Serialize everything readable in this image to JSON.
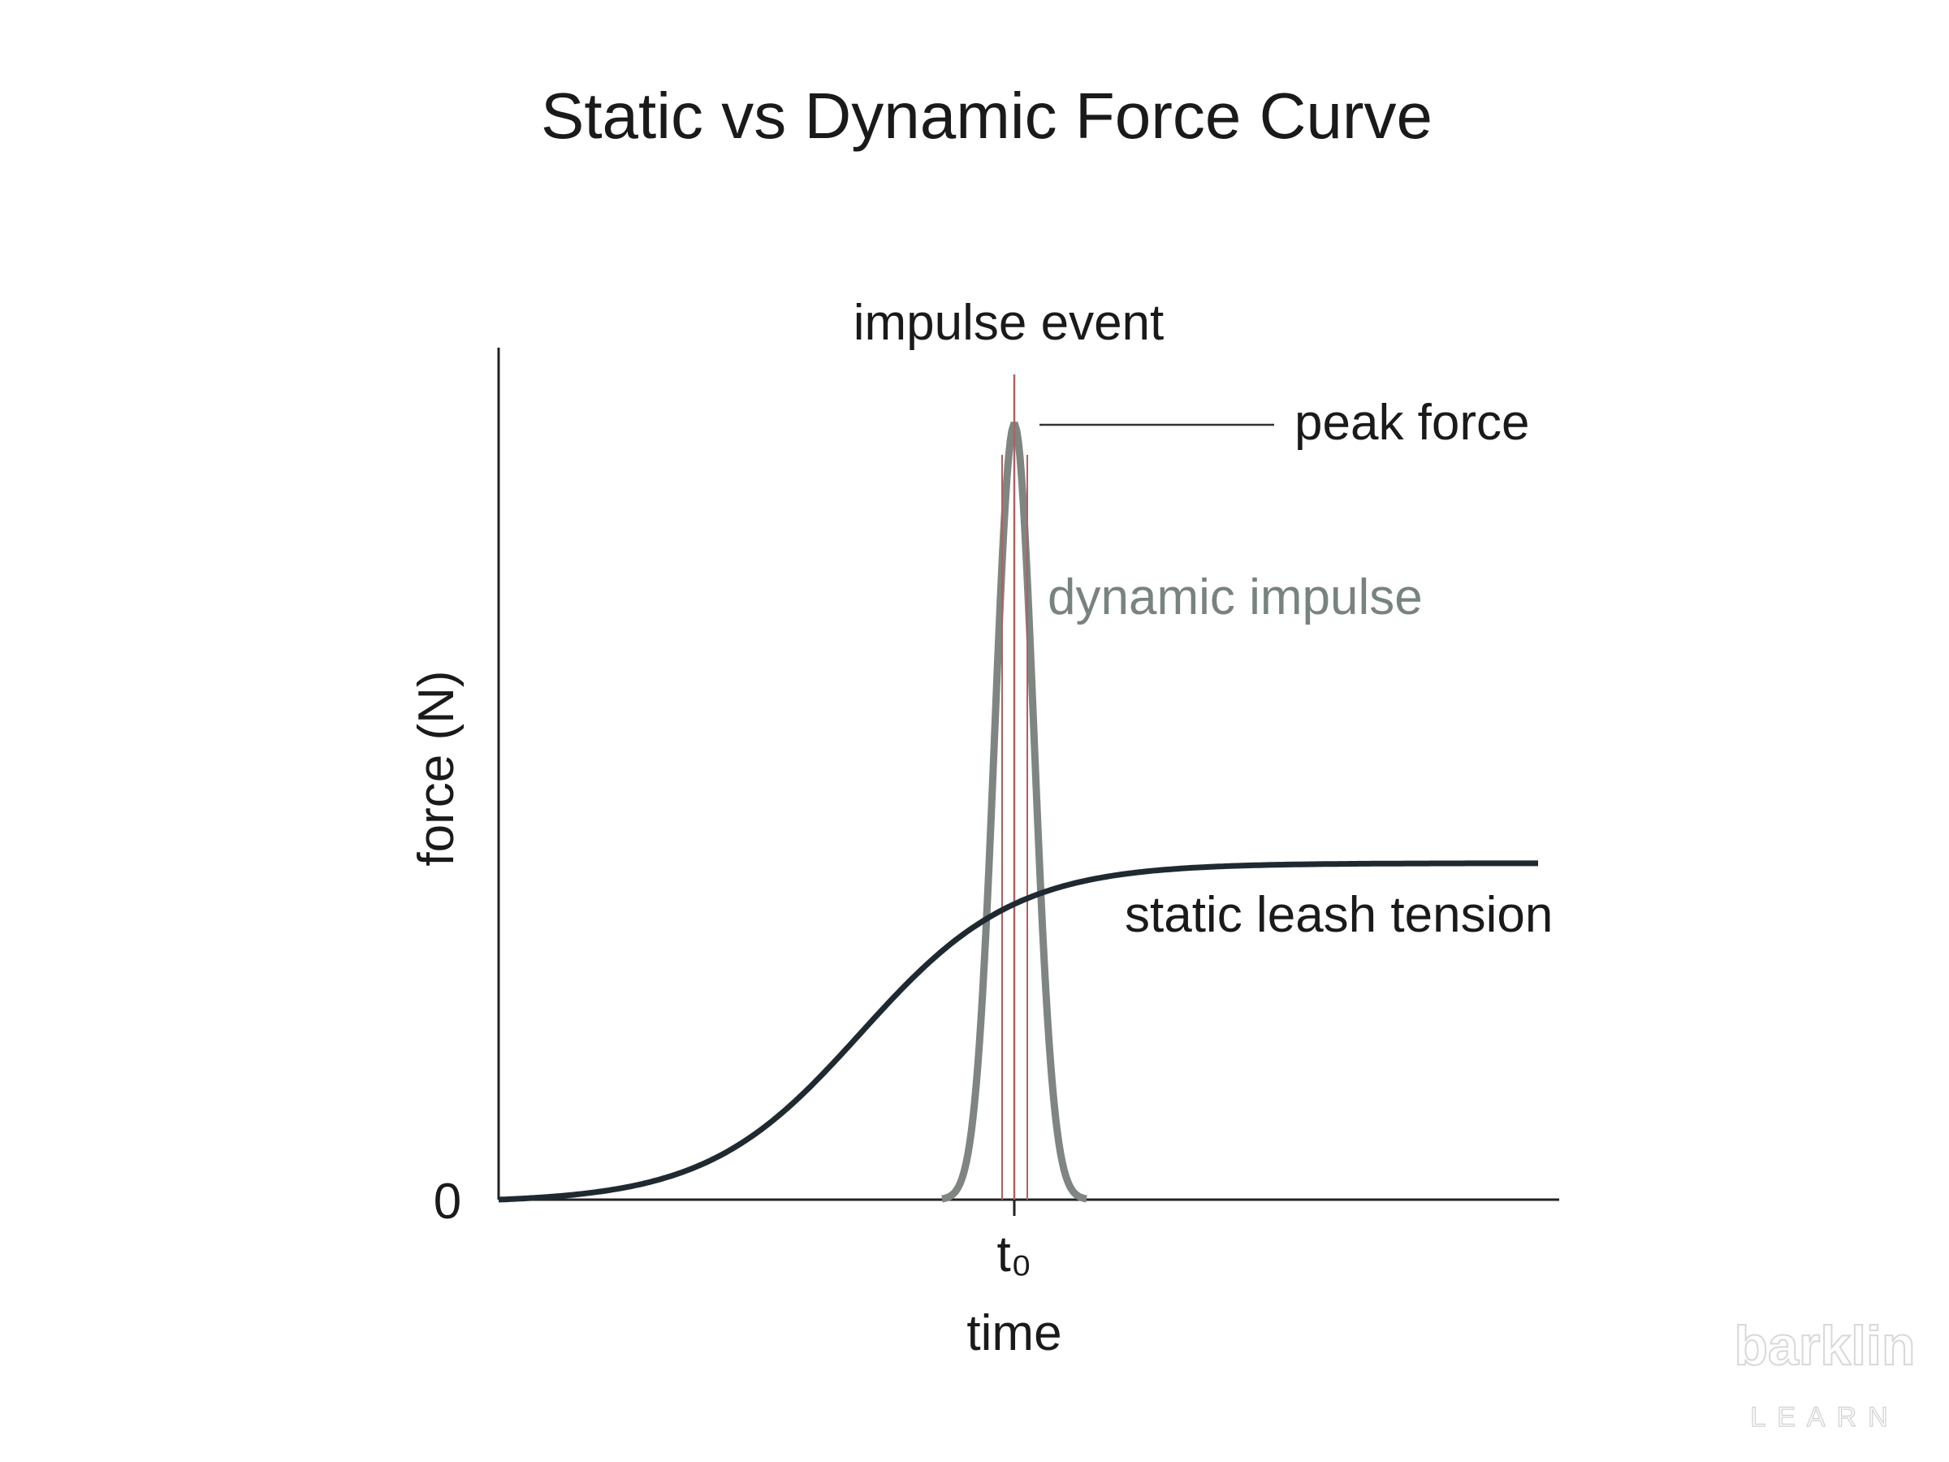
{
  "title": "Static vs Dynamic Force Curve",
  "axes": {
    "y_label": "force (N)",
    "y_origin_label": "0",
    "x_marker_label": "t₀",
    "x_label": "time"
  },
  "annotations": {
    "impulse_event": "impulse event",
    "peak_force": "peak force",
    "dynamic_impulse": "dynamic impulse",
    "static_tension": "static leash tension"
  },
  "watermark": {
    "brand": "barklin",
    "tagline": "LEARN"
  }
}
